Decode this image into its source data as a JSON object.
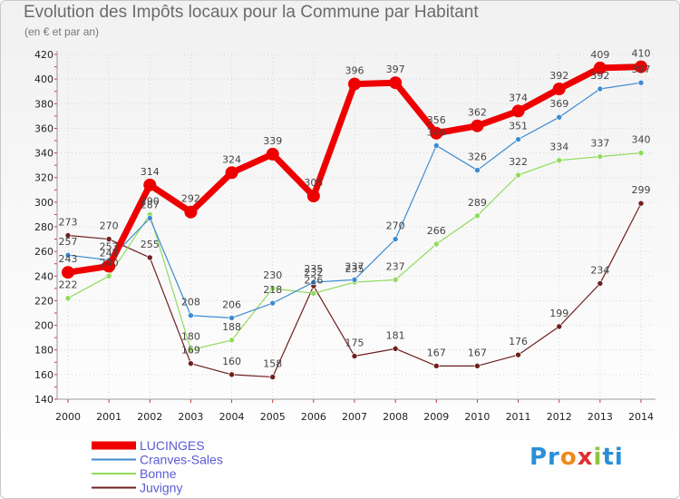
{
  "title": "Evolution des Impôts locaux pour la Commune par Habitant",
  "subtitle": "(en € et par an)",
  "chart_data": {
    "type": "line",
    "title": "Evolution des Impôts locaux pour la Commune par Habitant",
    "subtitle": "(en € et par an)",
    "xlabel": "",
    "ylabel": "",
    "x": [
      "2000",
      "2001",
      "2002",
      "2003",
      "2004",
      "2005",
      "2006",
      "2007",
      "2008",
      "2009",
      "2010",
      "2011",
      "2012",
      "2013",
      "2014"
    ],
    "ylim": [
      140,
      420
    ],
    "yticks": [
      140,
      160,
      180,
      200,
      220,
      240,
      260,
      280,
      300,
      320,
      340,
      360,
      380,
      400,
      420
    ],
    "grid": true,
    "legend_position": "bottom-left",
    "series": [
      {
        "name": "LUCINGES",
        "color": "#ee0000",
        "values": [
          243,
          248,
          314,
          292,
          324,
          339,
          305,
          396,
          397,
          356,
          362,
          374,
          392,
          409,
          410
        ]
      },
      {
        "name": "Cranves-Sales",
        "color": "#3d8bd1",
        "values": [
          257,
          253,
          287,
          208,
          206,
          218,
          235,
          237,
          270,
          346,
          326,
          351,
          369,
          392,
          397
        ]
      },
      {
        "name": "Bonne",
        "color": "#8fdc5a",
        "values": [
          222,
          240,
          290,
          180,
          188,
          230,
          226,
          235,
          237,
          266,
          289,
          322,
          334,
          337,
          340
        ]
      },
      {
        "name": "Juvigny",
        "color": "#6e1f1f",
        "values": [
          273,
          270,
          255,
          169,
          160,
          158,
          232,
          175,
          181,
          167,
          167,
          176,
          199,
          234,
          299
        ]
      }
    ]
  },
  "logo": {
    "parts": [
      "Pr",
      "o",
      "x",
      "i",
      "ti"
    ],
    "colors": [
      "#2a8fd6",
      "#f08a1c",
      "#e03030",
      "#8cc63f",
      "#2a8fd6"
    ]
  }
}
